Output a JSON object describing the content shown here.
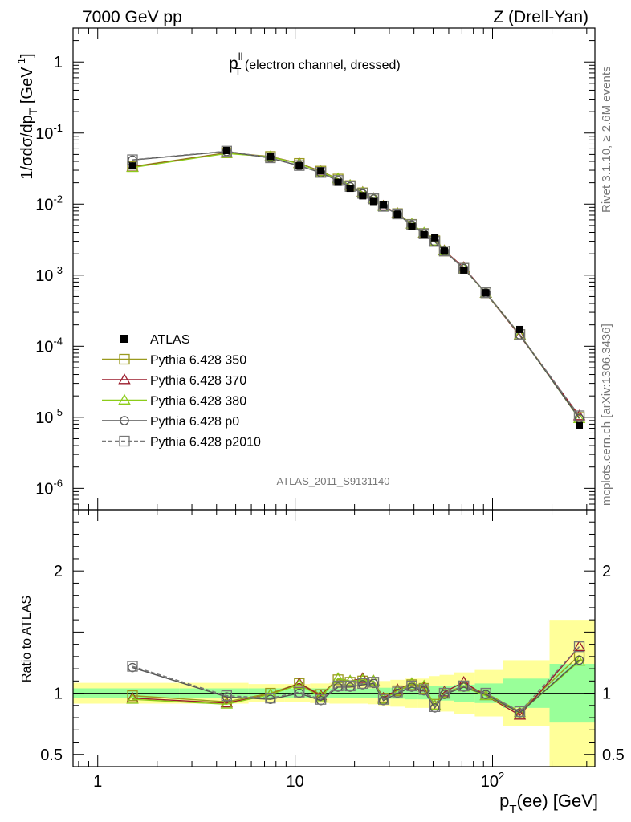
{
  "header": {
    "left": "7000 GeV pp",
    "right": "Z (Drell-Yan)"
  },
  "side_labels": {
    "rivet": "Rivet 3.1.10, ≥ 2.6M events",
    "mcplots": "mcplots.cern.ch [arXiv:1306.3436]"
  },
  "plot_title": {
    "main": "p",
    "sup": "ll",
    "sub": "T",
    "suffix": " (electron channel, dressed)"
  },
  "analysis_id": "ATLAS_2011_S9131140",
  "top_ylabel": {
    "text": "1/σdσ/dp",
    "sub": "T",
    "unit": " [GeV",
    "unit_sup": "-1",
    "unit_end": "]"
  },
  "bottom_ylabel": "Ratio to ATLAS",
  "xlabel": {
    "main": "p",
    "sub": "T",
    "rest": "(ee) [GeV]"
  },
  "legend": [
    {
      "label": "ATLAS",
      "marker": "filled-square",
      "color": "#000000"
    },
    {
      "label": "Pythia 6.428 350",
      "marker": "open-square",
      "color": "#9a9a1e"
    },
    {
      "label": "Pythia 6.428 370",
      "marker": "open-triangle",
      "color": "#9b1b2b"
    },
    {
      "label": "Pythia 6.428 380",
      "marker": "open-triangle",
      "color": "#8ccc1a"
    },
    {
      "label": "Pythia 6.428 p0",
      "marker": "open-circle",
      "color": "#555555"
    },
    {
      "label": "Pythia 6.428 p2010",
      "marker": "open-square-dashed",
      "color": "#777777"
    }
  ],
  "chart_data": {
    "type": "line",
    "xscale": "log",
    "xlim": [
      0.75,
      330
    ],
    "x_ticklabels": [
      "1",
      "10",
      "10^2"
    ],
    "top_panel": {
      "yscale": "log",
      "ylim": [
        5e-07,
        3
      ],
      "y_ticklabels": [
        "1",
        "10^-1",
        "10^-2",
        "10^-3",
        "10^-4",
        "10^-5",
        "10^-6"
      ]
    },
    "ratio_panel": {
      "ylim": [
        0.4,
        2.5
      ],
      "y_ticklabels": [
        "0.5",
        "1",
        "2"
      ],
      "reference_line": 1
    },
    "x": [
      1.5,
      4.5,
      7.5,
      10.5,
      13.5,
      16.5,
      19.0,
      22.0,
      25.0,
      28.0,
      33.0,
      39.0,
      45.0,
      51.0,
      57.0,
      71.5,
      92.5,
      137.5,
      275.0
    ],
    "atlas": [
      0.0345,
      0.0568,
      0.0468,
      0.0346,
      0.0294,
      0.0203,
      0.0167,
      0.0131,
      0.0109,
      0.0098,
      0.0072,
      0.00484,
      0.00371,
      0.00335,
      0.00219,
      0.00118,
      0.000566,
      0.000172,
      7.6e-06
    ],
    "atlas_band_inner": [
      0.04,
      0.04,
      0.04,
      0.04,
      0.04,
      0.04,
      0.04,
      0.04,
      0.04,
      0.045,
      0.045,
      0.05,
      0.05,
      0.06,
      0.06,
      0.07,
      0.08,
      0.12,
      0.24
    ],
    "atlas_band_outer": [
      0.085,
      0.085,
      0.075,
      0.075,
      0.08,
      0.085,
      0.085,
      0.085,
      0.09,
      0.1,
      0.11,
      0.12,
      0.12,
      0.14,
      0.15,
      0.17,
      0.19,
      0.27,
      0.6
    ],
    "series": [
      {
        "name": "Pythia 6.428 350",
        "ratio": [
          0.98,
          0.93,
          1.0,
          1.08,
          0.99,
          1.11,
          1.09,
          1.1,
          1.09,
          0.96,
          1.02,
          1.07,
          1.04,
          0.91,
          1.0,
          1.06,
          1.0,
          0.85,
          1.31
        ]
      },
      {
        "name": "Pythia 6.428 370",
        "ratio": [
          0.96,
          0.92,
          0.99,
          1.08,
          0.98,
          1.12,
          1.1,
          1.12,
          1.1,
          0.96,
          1.03,
          1.08,
          1.05,
          0.9,
          1.01,
          1.09,
          0.98,
          0.82,
          1.38
        ]
      },
      {
        "name": "Pythia 6.428 380",
        "ratio": [
          0.95,
          0.91,
          0.99,
          1.07,
          0.97,
          1.12,
          1.1,
          1.11,
          1.1,
          0.95,
          1.02,
          1.08,
          1.06,
          0.9,
          1.0,
          1.05,
          0.98,
          0.84,
          1.26
        ]
      },
      {
        "name": "Pythia 6.428 p0",
        "ratio": [
          1.21,
          0.97,
          0.95,
          1.0,
          0.94,
          1.05,
          1.05,
          1.07,
          1.08,
          0.94,
          1.0,
          1.05,
          1.02,
          0.88,
          0.99,
          1.05,
          0.99,
          0.84,
          1.27
        ]
      },
      {
        "name": "Pythia 6.428 p2010",
        "ratio": [
          1.22,
          0.98,
          0.96,
          1.01,
          0.95,
          1.06,
          1.06,
          1.08,
          1.09,
          0.95,
          1.01,
          1.06,
          1.03,
          0.89,
          1.0,
          1.06,
          1.0,
          0.85,
          1.38
        ]
      }
    ]
  }
}
